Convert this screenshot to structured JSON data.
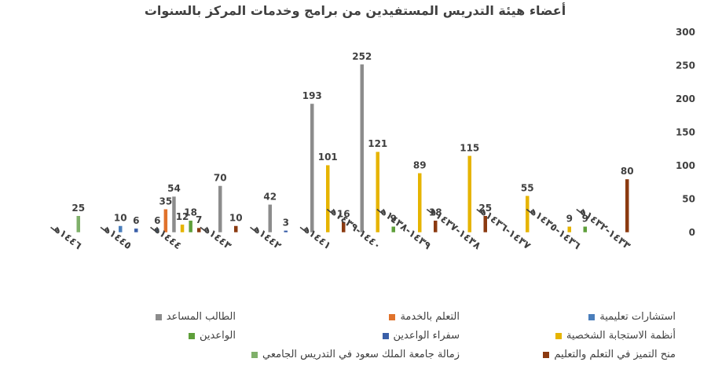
{
  "chart_data": {
    "type": "bar",
    "title": "أعضاء هيئة التدريس المستفيدين من برامج وخدمات المركز بالسنوات",
    "xlabel": "",
    "ylabel": "",
    "ylim": [
      0,
      300
    ],
    "yticks": [
      0,
      50,
      100,
      150,
      200,
      250,
      300
    ],
    "y_axis_position": "right",
    "grid": false,
    "legend_position": "bottom",
    "categories": [
      "١٤٤٦هـ",
      "١٤٤٥هـ",
      "١٤٤٤هـ",
      "١٤٤٣هـ",
      "١٤٤٢هـ",
      "١٤٤١هـ",
      "١٤٤٠-١٤٣٩هـ",
      "١٤٣٩-١٤٣٨هـ",
      "١٤٣٨-١٤٣٧هـ",
      "١٤٣٧-١٤٣٦هـ",
      "١٤٣٦-١٤٣٥هـ",
      "١٤٣٣-١٤٣٢هـ"
    ],
    "series": [
      {
        "name": "استشارات تعليمية",
        "color": "#4a7ebb",
        "values": [
          null,
          10,
          6,
          null,
          null,
          null,
          null,
          null,
          null,
          null,
          null,
          null
        ]
      },
      {
        "name": "التعلم بالخدمة",
        "color": "#e0722b",
        "values": [
          null,
          null,
          35,
          null,
          null,
          null,
          null,
          null,
          null,
          null,
          null,
          null
        ]
      },
      {
        "name": "الطالب المساعد",
        "color": "#8c8c8c",
        "values": [
          null,
          null,
          54,
          70,
          42,
          193,
          252,
          null,
          null,
          null,
          null,
          null
        ]
      },
      {
        "name": "أنظمة الاستجابة الشخصية",
        "color": "#e6b400",
        "values": [
          null,
          null,
          12,
          null,
          null,
          101,
          121,
          89,
          115,
          55,
          9,
          null
        ]
      },
      {
        "name": "سفراء الواعدين",
        "color": "#3a5fa8",
        "values": [
          null,
          6,
          null,
          null,
          3,
          null,
          null,
          null,
          null,
          null,
          null,
          null
        ]
      },
      {
        "name": "الواعدين",
        "color": "#5e9f3a",
        "values": [
          null,
          null,
          18,
          null,
          null,
          null,
          9,
          null,
          null,
          null,
          9,
          null
        ]
      },
      {
        "name": "منح التميز في التعلم والتعليم",
        "color": "#8b3a10",
        "values": [
          null,
          null,
          7,
          10,
          null,
          16,
          null,
          18,
          25,
          null,
          null,
          80
        ]
      },
      {
        "name": "زمالة جامعة الملك سعود في التدريس الجامعي",
        "color": "#7fb06a",
        "values": [
          25,
          null,
          null,
          null,
          null,
          null,
          null,
          null,
          null,
          null,
          null,
          null
        ]
      }
    ]
  }
}
